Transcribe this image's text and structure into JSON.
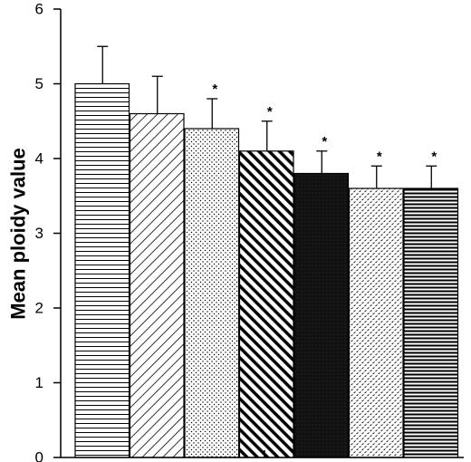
{
  "chart_data": {
    "type": "bar",
    "ylabel": "Mean ploidy value",
    "ylim": [
      0,
      6
    ],
    "yticks": [
      "0",
      "1",
      "2",
      "3",
      "4",
      "5",
      "6"
    ],
    "grid": false,
    "legend": "none",
    "series": [
      {
        "values": [
          5.0,
          4.6,
          4.4,
          4.1,
          3.8,
          3.6,
          3.6
        ],
        "error_upper": [
          0.5,
          0.5,
          0.4,
          0.4,
          0.3,
          0.3,
          0.3
        ],
        "significance": [
          "",
          "",
          "*",
          "*",
          "*",
          "*",
          "*"
        ],
        "patterns": [
          "horizontal-lines",
          "diagonal-lines",
          "dots",
          "bold-diagonal-lines",
          "dense-black",
          "dashed-dots",
          "bold-horizontal-lines"
        ]
      }
    ]
  }
}
